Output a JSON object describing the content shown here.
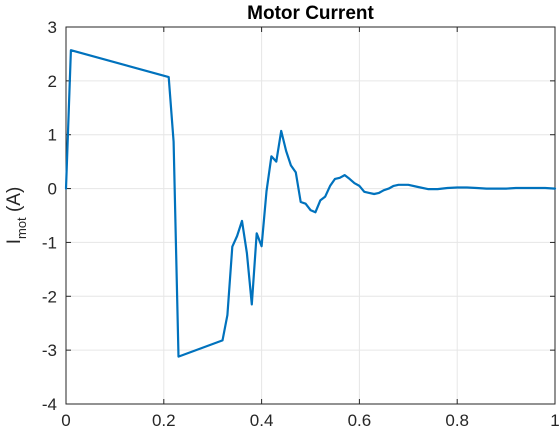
{
  "chart_data": {
    "type": "line",
    "title": "Motor Current",
    "xlabel": "",
    "ylabel": {
      "main": "I",
      "sub": "mot",
      "unit": " (A)"
    },
    "xlim": [
      0,
      1
    ],
    "ylim": [
      -4,
      3
    ],
    "grid": true,
    "x_ticks": [
      0,
      0.2,
      0.4,
      0.6,
      0.8,
      1
    ],
    "x_tick_labels": [
      "0",
      "0.2",
      "0.4",
      "0.6",
      "0.8",
      "1"
    ],
    "y_ticks": [
      3,
      2,
      1,
      0,
      -1,
      -2,
      -3,
      -4
    ],
    "y_tick_labels": [
      "3",
      "2",
      "1",
      "0",
      "-1",
      "-2",
      "-3",
      "-4"
    ],
    "colors": {
      "series": "#0072BD",
      "grid": "#e6e6e6",
      "axis": "#262626"
    },
    "series": [
      {
        "x": [
          0,
          0.01,
          0.21,
          0.22,
          0.23,
          0.32,
          0.33,
          0.34,
          0.35,
          0.36,
          0.37,
          0.38,
          0.39,
          0.4,
          0.41,
          0.42,
          0.43,
          0.44,
          0.45,
          0.46,
          0.47,
          0.48,
          0.49,
          0.5,
          0.51,
          0.52,
          0.53,
          0.54,
          0.55,
          0.56,
          0.57,
          0.58,
          0.59,
          0.6,
          0.61,
          0.62,
          0.63,
          0.64,
          0.65,
          0.66,
          0.67,
          0.68,
          0.69,
          0.7,
          0.72,
          0.74,
          0.76,
          0.78,
          0.8,
          0.82,
          0.84,
          0.86,
          0.88,
          0.9,
          0.92,
          0.94,
          0.96,
          0.98,
          1.0
        ],
        "y": [
          0,
          2.57,
          2.07,
          0.87,
          -3.12,
          -2.82,
          -2.35,
          -1.08,
          -0.88,
          -0.6,
          -1.2,
          -2.15,
          -0.83,
          -1.07,
          -0.05,
          0.6,
          0.5,
          1.07,
          0.7,
          0.43,
          0.3,
          -0.25,
          -0.28,
          -0.4,
          -0.44,
          -0.22,
          -0.15,
          0.05,
          0.18,
          0.2,
          0.25,
          0.18,
          0.1,
          0.05,
          -0.06,
          -0.08,
          -0.1,
          -0.08,
          -0.03,
          0.0,
          0.05,
          0.07,
          0.07,
          0.07,
          0.03,
          -0.01,
          -0.01,
          0.01,
          0.02,
          0.02,
          0.01,
          0.0,
          0.0,
          0.0,
          0.01,
          0.01,
          0.01,
          0.01,
          0.0
        ]
      }
    ]
  }
}
